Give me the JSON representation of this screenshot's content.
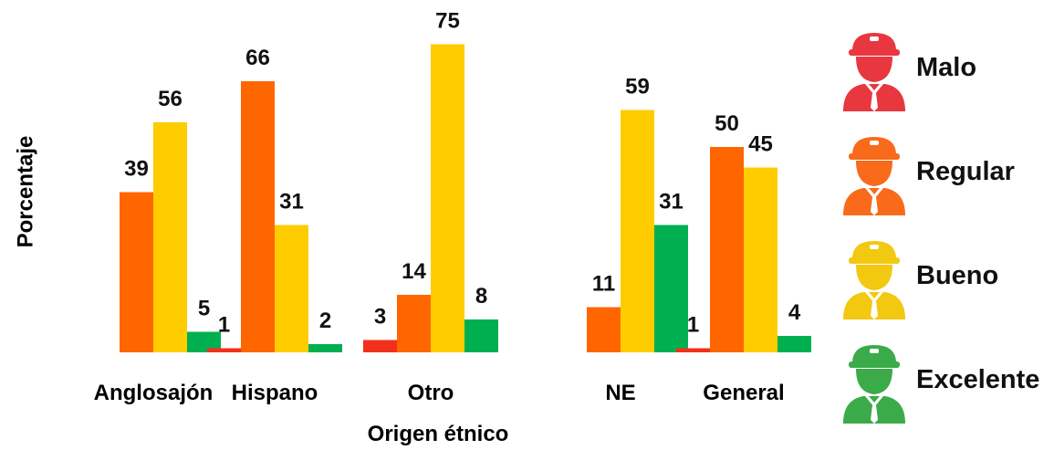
{
  "chart_data": {
    "type": "bar",
    "title": "",
    "xlabel": "Origen étnico",
    "ylabel": "Porcentaje",
    "categories": [
      "Anglosajón",
      "Hispano",
      "Otro",
      "NE",
      "General"
    ],
    "series": [
      {
        "name": "Malo",
        "color": "#f0301a",
        "values": [
          0,
          1,
          3,
          0,
          1
        ]
      },
      {
        "name": "Regular",
        "color": "#ff6600",
        "values": [
          39,
          66,
          14,
          11,
          50
        ]
      },
      {
        "name": "Bueno",
        "color": "#ffcc00",
        "values": [
          56,
          31,
          75,
          59,
          45
        ]
      },
      {
        "name": "Excelente",
        "color": "#00b050",
        "values": [
          5,
          2,
          8,
          31,
          4
        ]
      }
    ],
    "data_labels": [
      [
        "",
        "39",
        "56",
        "5"
      ],
      [
        "1",
        "66",
        "31",
        "2"
      ],
      [
        "3",
        "14",
        "75",
        "8"
      ],
      [
        "",
        "11",
        "59",
        "31"
      ],
      [
        "1",
        "50",
        "45",
        "4"
      ]
    ],
    "ylim": [
      0,
      75
    ],
    "grid": false,
    "legend_position": "right"
  },
  "legend": [
    {
      "label": "Malo",
      "icon": "worker-icon",
      "color": "#e8373f"
    },
    {
      "label": "Regular",
      "icon": "worker-icon",
      "color": "#f96a1b"
    },
    {
      "label": "Bueno",
      "icon": "worker-icon",
      "color": "#f2c811"
    },
    {
      "label": "Excelente",
      "icon": "worker-icon",
      "color": "#3aab48"
    }
  ]
}
